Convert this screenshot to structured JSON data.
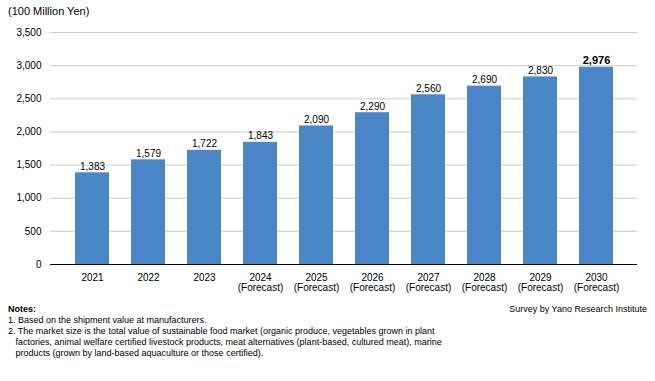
{
  "chart_data": {
    "type": "bar",
    "categories": [
      "2021",
      "2022",
      "2023",
      "2024\n(Forecast)",
      "2025\n(Forecast)",
      "2026\n(Forecast)",
      "2027\n(Forecast)",
      "2028\n(Forecast)",
      "2029\n(Forecast)",
      "2030\n(Forecast)"
    ],
    "values": [
      1383,
      1579,
      1722,
      1843,
      2090,
      2290,
      2560,
      2690,
      2830,
      2976
    ],
    "value_labels": [
      "1,383",
      "1,579",
      "1,722",
      "1,843",
      "2,090",
      "2,290",
      "2,560",
      "2,690",
      "2,830",
      "2,976"
    ],
    "data_labels": true,
    "color": "#4a86c8",
    "ylabel": "(100 Million Yen)",
    "ylim": [
      0,
      3500
    ],
    "yticks": [
      0,
      500,
      {
        "value": 1000,
        "label": "1,000"
      },
      {
        "value": 1500,
        "label": "1,500"
      },
      {
        "value": 2000,
        "label": "2,000"
      },
      {
        "value": 2500,
        "label": "2,500"
      },
      {
        "value": 3000,
        "label": "3,000"
      },
      {
        "value": 3500,
        "label": "3,500"
      }
    ],
    "grid": true,
    "annotations": [
      "Notes:",
      "1. Based on the shipment value at manufacturers.",
      "2. The market size is the total value of sustainable food market (organic produce, vegetables grown in plant",
      "   factories, animal welfare certified livestock products, meat alternatives (plant-based, cultured meat), marine",
      "   products (grown by land-based aquaculture or those certified)."
    ],
    "source": "Survey by Yano Research Institute"
  }
}
